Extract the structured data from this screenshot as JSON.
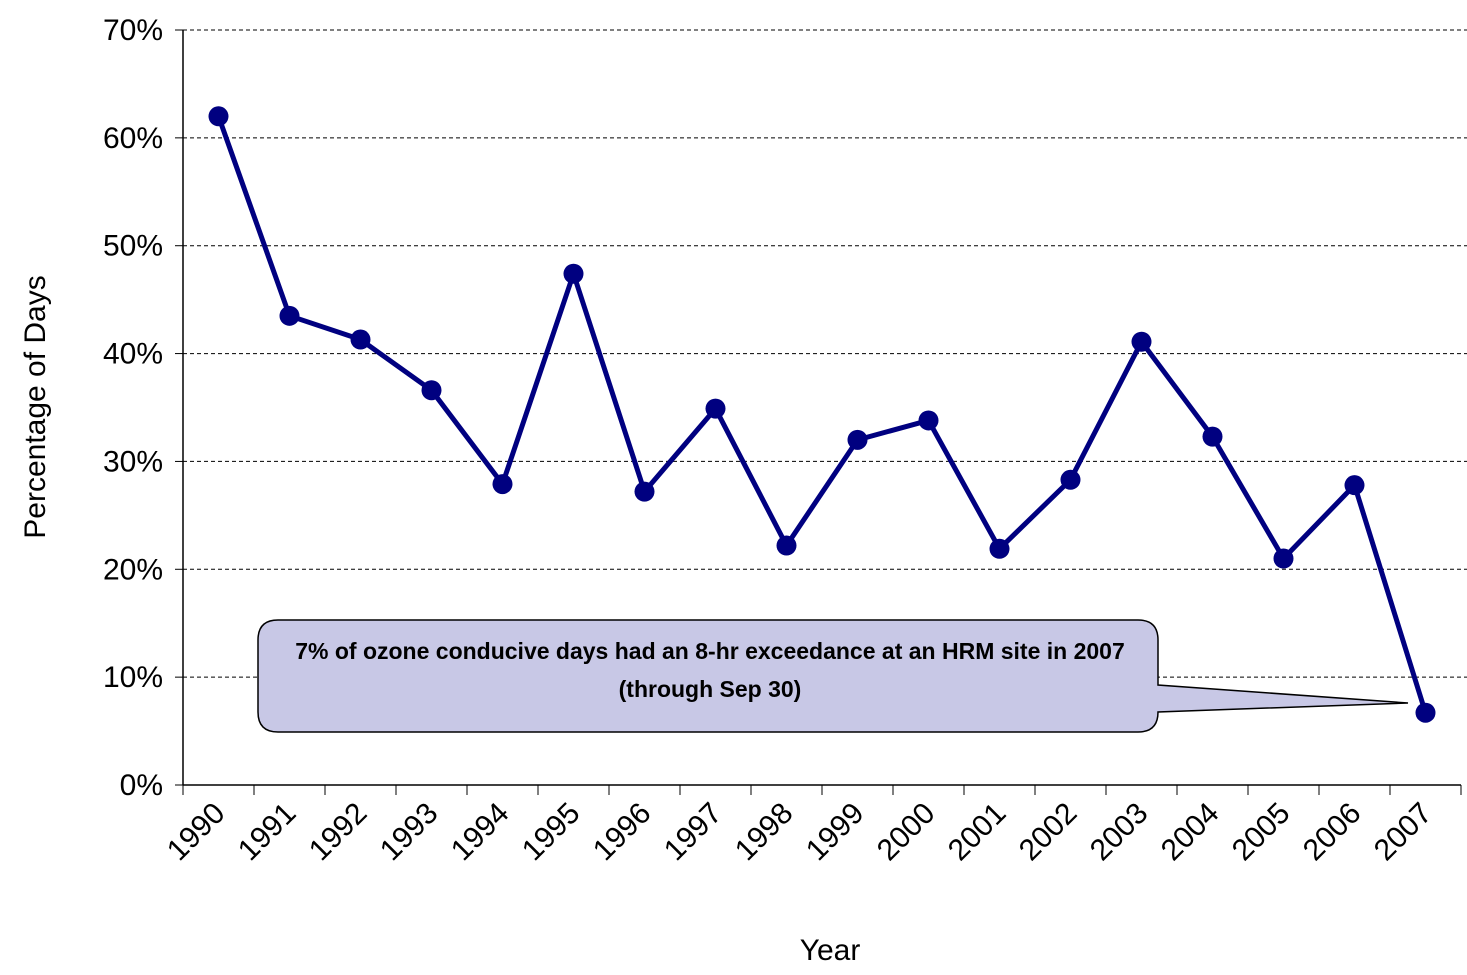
{
  "chart_data": {
    "type": "line",
    "x_label": "Year",
    "y_label": "Percentage of Days",
    "categories": [
      "1990",
      "1991",
      "1992",
      "1993",
      "1994",
      "1995",
      "1996",
      "1997",
      "1998",
      "1999",
      "2000",
      "2001",
      "2002",
      "2003",
      "2004",
      "2005",
      "2006",
      "2007"
    ],
    "series": [
      {
        "name": "Percentage of Days",
        "color": "#000080",
        "values": [
          62.0,
          43.5,
          41.3,
          36.6,
          27.9,
          47.4,
          27.2,
          34.9,
          22.2,
          32.0,
          33.8,
          21.9,
          28.3,
          41.1,
          32.3,
          21.0,
          27.8,
          6.7
        ]
      }
    ],
    "ylim": [
      0,
      70
    ],
    "yticks": [
      {
        "value": 0,
        "label": "0%"
      },
      {
        "value": 10,
        "label": "10%"
      },
      {
        "value": 20,
        "label": "20%"
      },
      {
        "value": 30,
        "label": "30%"
      },
      {
        "value": 40,
        "label": "40%"
      },
      {
        "value": 50,
        "label": "50%"
      },
      {
        "value": 60,
        "label": "60%"
      },
      {
        "value": 70,
        "label": "70%"
      }
    ],
    "grid": true,
    "annotation": "7% of ozone conducive days had an 8-hr exceedance at an HRM site in 2007 (through Sep 30)"
  }
}
